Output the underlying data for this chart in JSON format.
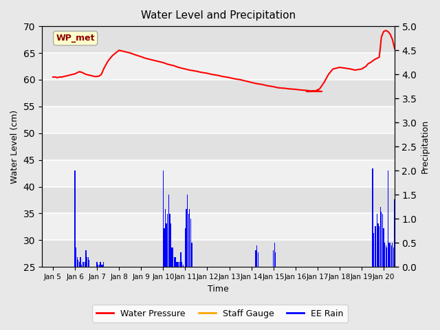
{
  "title": "Water Level and Precipitation",
  "xlabel": "Time",
  "ylabel_left": "Water Level (cm)",
  "ylabel_right": "Precipitation",
  "ylim_left": [
    25,
    70
  ],
  "ylim_right": [
    0.0,
    5.0
  ],
  "yticks_left": [
    25,
    30,
    35,
    40,
    45,
    50,
    55,
    60,
    65,
    70
  ],
  "yticks_right": [
    0.0,
    0.5,
    1.0,
    1.5,
    2.0,
    2.5,
    3.0,
    3.5,
    4.0,
    4.5,
    5.0
  ],
  "xtick_labels": [
    "Jan 5",
    "Jan 6",
    "Jan 7",
    "Jan 8",
    "Jan 9",
    "Jan 10",
    "Jan 11",
    "Jan 12",
    "Jan 13",
    "Jan 14",
    "Jan 15",
    "Jan 16",
    "Jan 17",
    "Jan 18",
    "Jan 19",
    "Jan 20"
  ],
  "bg_color": "#e8e8e8",
  "plot_bg_color": "#f0f0f0",
  "grid_color": "white",
  "wp_color": "#ff0000",
  "rain_color": "#0000ff",
  "staff_color": "#ffa500",
  "annotation_text": "WP_met",
  "annotation_color": "#8b0000",
  "annotation_bg": "#ffffcc",
  "legend_labels": [
    "Water Pressure",
    "Staff Gauge",
    "EE Rain"
  ],
  "legend_colors": [
    "#ff0000",
    "#ffa500",
    "#0000ff"
  ],
  "wp_x": [
    0.0,
    0.1,
    0.2,
    0.3,
    0.4,
    0.5,
    0.6,
    0.7,
    0.8,
    0.9,
    1.0,
    1.1,
    1.2,
    1.3,
    1.4,
    1.5,
    1.6,
    1.7,
    1.8,
    1.9,
    2.0,
    2.1,
    2.2,
    2.3,
    2.5,
    2.7,
    3.0,
    3.2,
    3.5,
    3.7,
    4.0,
    4.2,
    4.5,
    4.7,
    5.0,
    5.2,
    5.5,
    5.7,
    6.0,
    6.2,
    6.5,
    6.7,
    7.0,
    7.2,
    7.5,
    7.7,
    8.0,
    8.2,
    8.5,
    8.7,
    9.0,
    9.2,
    9.5,
    9.7,
    10.0,
    10.2,
    10.5,
    10.7,
    11.0,
    11.2,
    11.5,
    11.7,
    12.0,
    12.2,
    11.5,
    11.7,
    11.9,
    12.1,
    12.3,
    12.5,
    12.7,
    12.9,
    13.0,
    13.2,
    13.5,
    13.7,
    14.0,
    14.2,
    14.3,
    14.4,
    14.5,
    14.6,
    14.7,
    14.8,
    14.85,
    14.9,
    15.0,
    15.1,
    15.2,
    15.3,
    15.4,
    15.5
  ],
  "wp_y": [
    60.5,
    60.5,
    60.4,
    60.5,
    60.5,
    60.6,
    60.7,
    60.8,
    60.9,
    61.0,
    61.1,
    61.3,
    61.5,
    61.4,
    61.2,
    61.0,
    60.9,
    60.8,
    60.7,
    60.6,
    60.6,
    60.7,
    61.0,
    62.0,
    63.5,
    64.5,
    65.5,
    65.3,
    65.0,
    64.7,
    64.3,
    64.0,
    63.7,
    63.5,
    63.2,
    62.9,
    62.6,
    62.3,
    62.0,
    61.8,
    61.6,
    61.4,
    61.2,
    61.0,
    60.8,
    60.6,
    60.4,
    60.2,
    60.0,
    59.8,
    59.5,
    59.3,
    59.1,
    58.9,
    58.7,
    58.5,
    58.4,
    58.3,
    58.2,
    58.1,
    58.0,
    57.9,
    57.9,
    57.8,
    57.8,
    57.8,
    57.9,
    58.3,
    59.5,
    61.0,
    62.0,
    62.2,
    62.3,
    62.2,
    62.0,
    61.8,
    62.0,
    62.5,
    63.0,
    63.2,
    63.5,
    63.8,
    64.0,
    64.2,
    66.0,
    68.0,
    69.0,
    69.2,
    69.0,
    68.5,
    67.5,
    65.8
  ],
  "rain_x": [
    1.0,
    1.05,
    1.1,
    1.15,
    1.2,
    1.25,
    1.3,
    1.35,
    1.4,
    1.45,
    1.5,
    1.55,
    1.6,
    1.65,
    2.0,
    2.05,
    2.1,
    2.15,
    2.2,
    2.25,
    2.3,
    5.0,
    5.05,
    5.1,
    5.15,
    5.2,
    5.25,
    5.3,
    5.35,
    5.4,
    5.45,
    5.5,
    5.55,
    5.6,
    5.65,
    5.7,
    5.75,
    5.8,
    5.85,
    5.9,
    6.0,
    6.05,
    6.1,
    6.15,
    6.2,
    6.25,
    6.3,
    9.2,
    9.25,
    9.3,
    10.0,
    10.05,
    10.1,
    14.5,
    14.55,
    14.6,
    14.65,
    14.7,
    14.75,
    14.8,
    14.85,
    14.9,
    14.95,
    15.0,
    15.05,
    15.1,
    15.15,
    15.2,
    15.25,
    15.3,
    15.35,
    15.4,
    15.45,
    15.5
  ],
  "rain_precip": [
    2.0,
    0.4,
    0.2,
    0.15,
    0.1,
    0.2,
    0.05,
    0.1,
    0.1,
    0.1,
    0.35,
    0.2,
    0.2,
    0.15,
    0.1,
    0.05,
    0.05,
    0.1,
    0.05,
    0.05,
    0.1,
    2.0,
    0.8,
    1.2,
    0.9,
    1.1,
    1.5,
    1.1,
    0.9,
    0.4,
    0.4,
    0.2,
    0.2,
    0.1,
    0.1,
    0.1,
    0.1,
    0.3,
    0.1,
    0.05,
    0.8,
    1.2,
    1.5,
    1.1,
    1.2,
    1.0,
    0.5,
    0.35,
    0.45,
    0.3,
    0.35,
    0.5,
    0.3,
    2.05,
    0.7,
    0.85,
    0.85,
    1.1,
    0.9,
    0.85,
    1.25,
    1.15,
    1.1,
    0.8,
    0.5,
    0.45,
    0.4,
    2.0,
    0.5,
    0.5,
    0.45,
    0.5,
    0.4,
    1.4
  ]
}
